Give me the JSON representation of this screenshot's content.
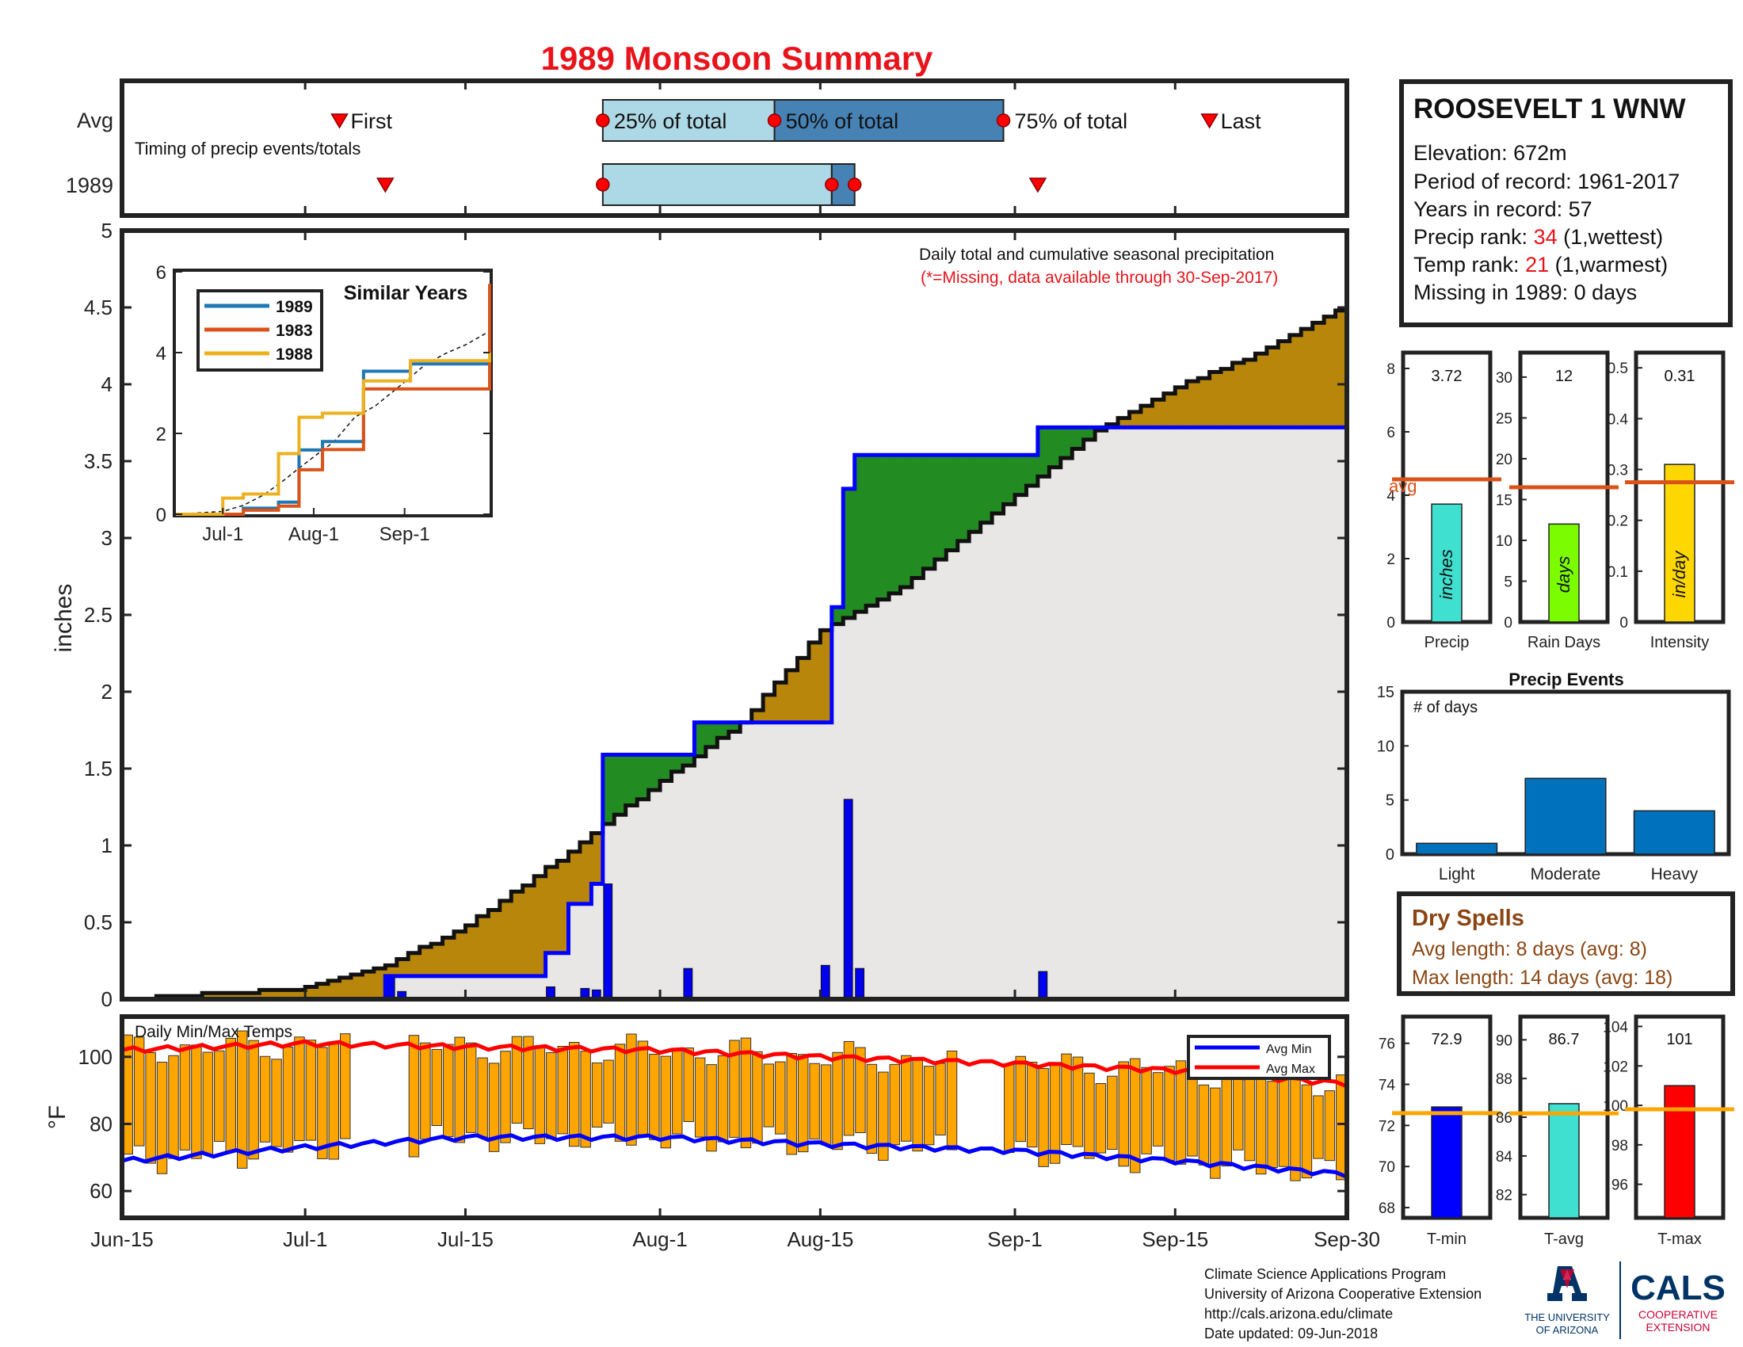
{
  "title": "1989 Monsoon Summary",
  "timing": {
    "rows": [
      "Avg",
      "1989"
    ],
    "caption": "Timing of precip events/totals",
    "labels": {
      "first": "First",
      "p25": "25% of total",
      "p50": "50% of total",
      "p75": "75% of total",
      "last": "Last"
    },
    "avg_dates": {
      "first": "Jul-4",
      "p25": "Jul-27",
      "p50": "Aug-11",
      "p75": "Aug-31",
      "last": "Sep-18"
    },
    "year_dates": {
      "first": "Jul-8",
      "p25": "Jul-27",
      "p50": "Aug-16",
      "p75": "Aug-18",
      "last": "Sep-3"
    }
  },
  "station": {
    "name": "ROOSEVELT 1 WNW",
    "elevation": "Elevation: 672m",
    "period": "Period of record: 1961-2017",
    "years": "Years in record: 57",
    "precip_rank_label": "Precip rank: ",
    "precip_rank": "34",
    "precip_rank_note": " (1,wettest)",
    "temp_rank_label": "Temp rank: ",
    "temp_rank": "21",
    "temp_rank_note": " (1,warmest)",
    "missing": "Missing in 1989: 0 days"
  },
  "main_chart": {
    "note_line1": "Daily total and cumulative seasonal precipitation",
    "note_line2": "(*=Missing, data available through 30-Sep-2017)",
    "ylabel": "inches",
    "colors": {
      "above_avg": "#228B22",
      "below_avg": "#B8860B",
      "obs_line": "#0000FF",
      "daily_bar": "#0000EE",
      "background": "#E8E7E6"
    }
  },
  "inset": {
    "title": "Similar Years",
    "legend": [
      "1989",
      "1983",
      "1988"
    ],
    "colors": [
      "#1F77B4",
      "#D95319",
      "#EDB120"
    ],
    "xticks": [
      "Jul-1",
      "Aug-1",
      "Sep-1"
    ],
    "yticks": [
      "0",
      "2",
      "4",
      "6"
    ]
  },
  "temp_chart": {
    "title": "Daily Min/Max Temps",
    "ylabel": "°F",
    "legend_min": "Avg Min",
    "legend_max": "Avg Max",
    "yticks": [
      "60",
      "80",
      "100"
    ],
    "colors": {
      "bar": "#FFA500",
      "avg_min": "#0000FF",
      "avg_max": "#FF0000"
    }
  },
  "xaxis_labels": [
    "Jun-15",
    "Jul-1",
    "Jul-15",
    "Aug-1",
    "Aug-15",
    "Sep-1",
    "Sep-15",
    "Sep-30"
  ],
  "summary_bars": {
    "precip": {
      "value_text": "3.72",
      "unit": "inches",
      "label": "Precip",
      "avg_label": "avg",
      "yticks": [
        "0",
        "2",
        "4",
        "6",
        "8"
      ]
    },
    "rain_days": {
      "value_text": "12",
      "unit": "days",
      "label": "Rain Days",
      "yticks": [
        "0",
        "5",
        "10",
        "15",
        "20",
        "25",
        "30"
      ]
    },
    "intensity": {
      "value_text": "0.31",
      "unit": "in/day",
      "label": "Intensity",
      "yticks": [
        "0",
        "0.1",
        "0.2",
        "0.3",
        "0.4",
        "0.5"
      ]
    }
  },
  "events": {
    "title": "Precip Events",
    "ylabel": "# of days",
    "categories": [
      "Light",
      "Moderate",
      "Heavy"
    ],
    "yticks": [
      "0",
      "5",
      "10",
      "15"
    ]
  },
  "dry_spells": {
    "title": "Dry Spells",
    "avg_length": "Avg length: 8 days (avg: 8)",
    "max_length": "Max length: 14 days (avg: 18)"
  },
  "temp_bars": {
    "tmin": {
      "value_text": "72.9",
      "label": "T-min",
      "yticks": [
        "68",
        "70",
        "72",
        "74",
        "76"
      ]
    },
    "tavg": {
      "value_text": "86.7",
      "label": "T-avg",
      "yticks": [
        "82",
        "84",
        "86",
        "88",
        "90"
      ]
    },
    "tmax": {
      "value_text": "101",
      "label": "T-max",
      "yticks": [
        "96",
        "98",
        "100",
        "102",
        "104"
      ]
    }
  },
  "footer": {
    "line1": "Climate Science Applications Program",
    "line2": "University of Arizona Cooperative Extension",
    "line3": "http://cals.arizona.edu/climate",
    "line4": " Date updated: 09-Jun-2018",
    "ua_line1": "THE UNIVERSITY",
    "ua_line2": "OF ARIZONA",
    "cals": "CALS",
    "cals_sub1": "COOPERATIVE",
    "cals_sub2": "EXTENSION"
  },
  "chart_data": [
    {
      "type": "area",
      "title": "Daily total and cumulative seasonal precipitation",
      "ylabel": "inches",
      "xlim": [
        "Jun-15",
        "Sep-30"
      ],
      "ylim": [
        0,
        5
      ],
      "yticks": [
        0,
        0.5,
        1,
        1.5,
        2,
        2.5,
        3,
        3.5,
        4,
        4.5,
        5
      ],
      "series": [
        {
          "name": "1989 cumulative",
          "x": [
            "Jun-15",
            "Jul-8",
            "Jul-22",
            "Jul-24",
            "Jul-26",
            "Jul-27",
            "Aug-4",
            "Aug-6",
            "Aug-16",
            "Aug-17",
            "Aug-18",
            "Sep-3",
            "Sep-30"
          ],
          "values": [
            0,
            0.15,
            0.3,
            0.62,
            0.75,
            1.59,
            1.8,
            1.8,
            2.55,
            3.32,
            3.54,
            3.72,
            3.72
          ]
        },
        {
          "name": "Average cumulative",
          "x": [
            "Jun-15",
            "Jul-1",
            "Jul-8",
            "Jul-15",
            "Jul-22",
            "Jul-27",
            "Aug-1",
            "Aug-8",
            "Aug-15",
            "Aug-22",
            "Sep-1",
            "Sep-8",
            "Sep-15",
            "Sep-22",
            "Sep-30"
          ],
          "values": [
            0,
            0.07,
            0.22,
            0.48,
            0.85,
            1.14,
            1.42,
            1.8,
            2.4,
            2.68,
            3.27,
            3.7,
            3.98,
            4.2,
            4.53
          ]
        },
        {
          "name": "Daily precipitation",
          "x": [
            "Jul-8",
            "Jul-9",
            "Jul-22",
            "Jul-25",
            "Jul-26",
            "Jul-27",
            "Aug-3",
            "Aug-15",
            "Aug-17",
            "Aug-18",
            "Sep-3"
          ],
          "values": [
            0.15,
            0.05,
            0.08,
            0.07,
            0.06,
            0.75,
            0.2,
            0.22,
            1.3,
            0.2,
            0.18
          ]
        }
      ]
    },
    {
      "type": "line",
      "title": "Similar Years",
      "x": [
        "Jun-15",
        "Jul-1",
        "Jul-8",
        "Jul-20",
        "Jul-27",
        "Aug-4",
        "Aug-18",
        "Sep-3",
        "Sep-30"
      ],
      "series": [
        {
          "name": "1989",
          "values": [
            0,
            0,
            0.15,
            0.3,
            1.59,
            1.8,
            3.54,
            3.72,
            3.72
          ]
        },
        {
          "name": "1983",
          "values": [
            0,
            0,
            0.1,
            0.2,
            1.1,
            1.6,
            3.1,
            3.1,
            5.7
          ]
        },
        {
          "name": "1988",
          "values": [
            0,
            0.4,
            0.5,
            1.5,
            2.4,
            2.5,
            3.3,
            3.8,
            4.0
          ]
        }
      ],
      "ylim": [
        0,
        6
      ]
    },
    {
      "type": "bar",
      "title": "Daily Min/Max Temps",
      "ylabel": "°F",
      "ylim": [
        52,
        112
      ],
      "series": [
        {
          "name": "Avg Min",
          "values": [
            69,
            73,
            76,
            76,
            74,
            72,
            69,
            65
          ]
        },
        {
          "name": "Avg Max",
          "values": [
            102,
            104,
            103,
            102,
            100,
            98,
            96,
            92
          ]
        }
      ],
      "x": [
        "Jun-15",
        "Jul-1",
        "Jul-15",
        "Aug-1",
        "Aug-15",
        "Sep-1",
        "Sep-15",
        "Sep-30"
      ]
    },
    {
      "type": "bar",
      "categories": [
        "Precip",
        "Rain Days",
        "Intensity"
      ],
      "values": [
        3.72,
        12,
        0.31
      ],
      "averages": [
        4.5,
        16.5,
        0.275
      ]
    },
    {
      "type": "bar",
      "title": "Precip Events",
      "categories": [
        "Light",
        "Moderate",
        "Heavy"
      ],
      "values": [
        1,
        7,
        4
      ],
      "ylim": [
        0,
        15
      ]
    },
    {
      "type": "bar",
      "categories": [
        "T-min",
        "T-avg",
        "T-max"
      ],
      "values": [
        72.9,
        86.7,
        101
      ],
      "averages": [
        72.6,
        86.2,
        99.8
      ]
    }
  ]
}
